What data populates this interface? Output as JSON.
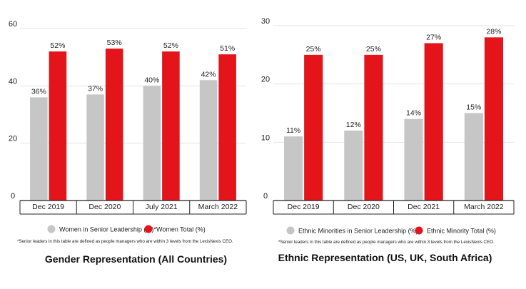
{
  "colors": {
    "gray": "#c6c6c6",
    "red": "#e3151a",
    "text": "#222222",
    "grid": "#e3e3e3"
  },
  "chart_data": [
    {
      "type": "bar",
      "title": "Gender Representation (All Countries)",
      "categories": [
        "Dec 2019",
        "Dec 2020",
        "July 2021",
        "March 2022"
      ],
      "series": [
        {
          "name": "Women in Senior Leadership (%)*",
          "values": [
            36,
            37,
            40,
            42
          ],
          "labels": [
            "36%",
            "37%",
            "40%",
            "42%"
          ],
          "color": "#c6c6c6"
        },
        {
          "name": "Women Total (%)",
          "values": [
            52,
            53,
            52,
            51
          ],
          "labels": [
            "52%",
            "53%",
            "52%",
            "51%"
          ],
          "color": "#e3151a"
        }
      ],
      "ylim": [
        0,
        60
      ],
      "yticks": [
        0,
        20,
        40,
        60
      ],
      "grid": true,
      "legend": "bottom",
      "footnote": "*Senior leaders in this table are defined as people managers who are within 3 levels from the LexisNexis CEO."
    },
    {
      "type": "bar",
      "title": "Ethnic Representation (US, UK, South Africa)",
      "categories": [
        "Dec 2019",
        "Dec 2020",
        "Dec 2021",
        "March 2022"
      ],
      "series": [
        {
          "name": "Ethnic Minorities in Senior Leadership (%)*",
          "values": [
            11,
            12,
            14,
            15
          ],
          "labels": [
            "11%",
            "12%",
            "14%",
            "15%"
          ],
          "color": "#c6c6c6"
        },
        {
          "name": "Ethnic Minority Total (%)",
          "values": [
            25,
            25,
            27,
            28
          ],
          "labels": [
            "25%",
            "25%",
            "27%",
            "28%"
          ],
          "color": "#e3151a"
        }
      ],
      "ylim": [
        0,
        30
      ],
      "yticks": [
        0,
        10,
        20,
        30
      ],
      "grid": true,
      "legend": "bottom",
      "footnote": "*Senior leaders in this table are defined as people managers who are within 3 levels from the LexisNexis CEO."
    }
  ]
}
